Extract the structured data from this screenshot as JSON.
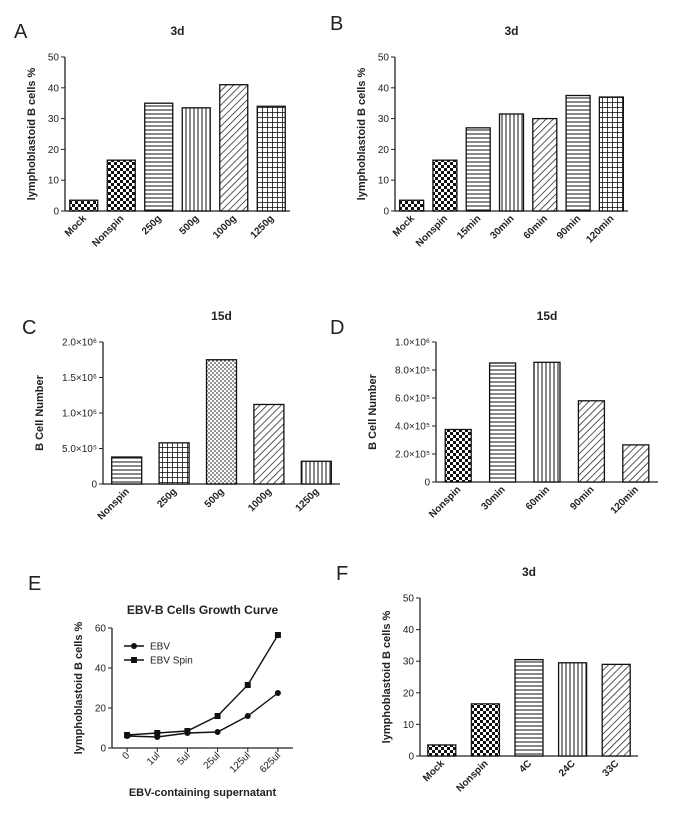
{
  "chart_data": [
    {
      "id": "A",
      "type": "bar",
      "title": "3d",
      "ylabel": "lymphoblastoid B cells %",
      "xlabel": "",
      "ylim": [
        0,
        50
      ],
      "yticks": [
        "0",
        "10",
        "20",
        "30",
        "40",
        "50"
      ],
      "categories": [
        "Mock",
        "Nonspin",
        "250g",
        "500g",
        "1000g",
        "1250g"
      ],
      "values": [
        3.5,
        16.5,
        35,
        33.5,
        41,
        34
      ],
      "patterns": [
        "checker",
        "checker",
        "hlines",
        "vlines",
        "diag",
        "grid"
      ]
    },
    {
      "id": "B",
      "type": "bar",
      "title": "3d",
      "ylabel": "lymphoblastoid B cells %",
      "xlabel": "",
      "ylim": [
        0,
        50
      ],
      "yticks": [
        "0",
        "10",
        "20",
        "30",
        "40",
        "50"
      ],
      "categories": [
        "Mock",
        "Nonspin",
        "15min",
        "30min",
        "60min",
        "90min",
        "120min"
      ],
      "values": [
        3.5,
        16.5,
        27,
        31.5,
        30,
        37.5,
        37
      ],
      "patterns": [
        "checker",
        "checker",
        "hlines",
        "vlines",
        "diag",
        "hlines",
        "grid"
      ]
    },
    {
      "id": "C",
      "type": "bar",
      "title": "15d",
      "ylabel": "B Cell Number",
      "xlabel": "",
      "ylim": [
        0,
        2000000
      ],
      "yticks": [
        "0",
        "5.0×10⁵",
        "1.0×10⁶",
        "1.5×10⁶",
        "2.0×10⁶"
      ],
      "categories": [
        "Nonspin",
        "250g",
        "500g",
        "1000g",
        "1250g"
      ],
      "values": [
        380000,
        580000,
        1750000,
        1120000,
        320000
      ],
      "patterns": [
        "hlines",
        "grid",
        "dots",
        "diag",
        "vlines"
      ]
    },
    {
      "id": "D",
      "type": "bar",
      "title": "15d",
      "ylabel": "B Cell Number",
      "xlabel": "",
      "ylim": [
        0,
        1000000
      ],
      "yticks": [
        "0",
        "2.0×10⁵",
        "4.0×10⁵",
        "6.0×10⁵",
        "8.0×10⁵",
        "1.0×10⁶"
      ],
      "categories": [
        "Nonspin",
        "30min",
        "60min",
        "90min",
        "120min"
      ],
      "values": [
        375000,
        850000,
        855000,
        580000,
        265000
      ],
      "patterns": [
        "checker",
        "hlines",
        "vlines",
        "diag",
        "diag"
      ]
    },
    {
      "id": "E",
      "type": "line",
      "title": "EBV-B Cells Growth Curve",
      "ylabel": "lymphoblastoid B cells %",
      "xlabel": "EBV-containing supernatant",
      "ylim": [
        0,
        60
      ],
      "yticks": [
        "0",
        "20",
        "40",
        "60"
      ],
      "categories": [
        "0",
        "1ul",
        "5ul",
        "25ul",
        "125ul",
        "625ul"
      ],
      "series": [
        {
          "name": "EBV",
          "marker": "circle",
          "values": [
            6,
            5.5,
            7.5,
            8,
            16,
            27.5
          ]
        },
        {
          "name": "EBV Spin",
          "marker": "square",
          "values": [
            6.5,
            7.5,
            8.5,
            16,
            31.5,
            56.5
          ]
        }
      ]
    },
    {
      "id": "F",
      "type": "bar",
      "title": "3d",
      "ylabel": "lymphoblastoid B cells %",
      "xlabel": "",
      "ylim": [
        0,
        50
      ],
      "yticks": [
        "0",
        "10",
        "20",
        "30",
        "40",
        "50"
      ],
      "categories": [
        "Mock",
        "Nonspin",
        "4C",
        "24C",
        "33C"
      ],
      "values": [
        3.5,
        16.5,
        30.5,
        29.5,
        29
      ],
      "patterns": [
        "checker",
        "checker",
        "hlines",
        "vlines",
        "diag"
      ]
    }
  ]
}
